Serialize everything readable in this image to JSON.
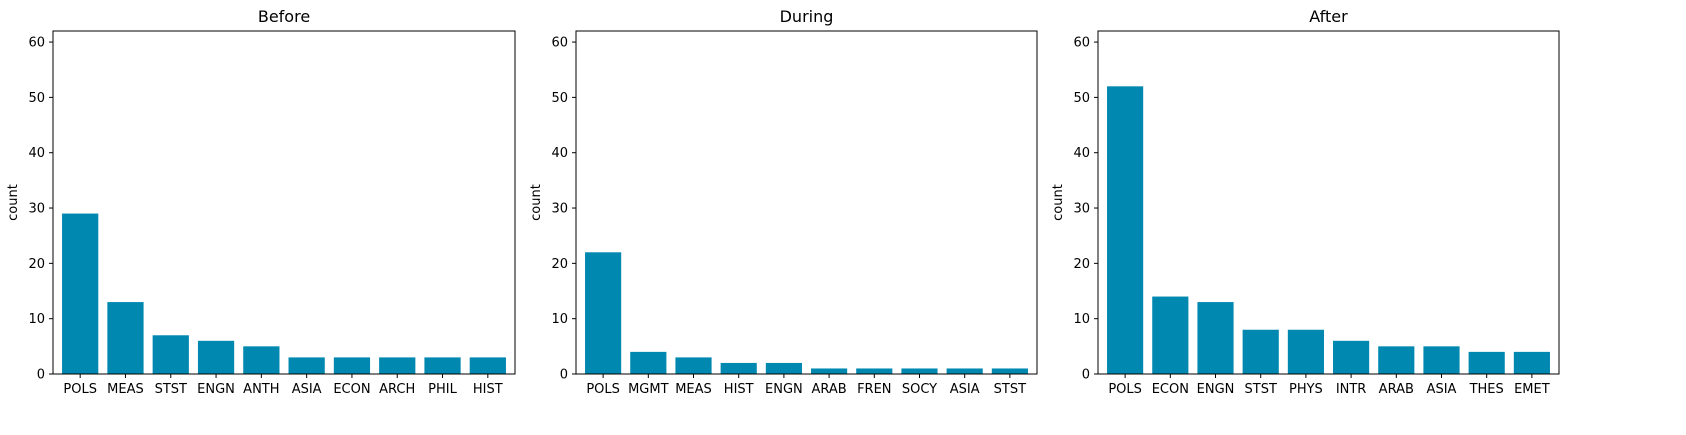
{
  "chart_data": [
    {
      "type": "bar",
      "title": "Before",
      "xlabel": "",
      "ylabel": "count",
      "ylim": [
        0,
        62
      ],
      "yticks": [
        0,
        10,
        20,
        30,
        40,
        50,
        60
      ],
      "categories": [
        "POLS",
        "MEAS",
        "STST",
        "ENGN",
        "ANTH",
        "ASIA",
        "ECON",
        "ARCH",
        "PHIL",
        "HIST"
      ],
      "values": [
        29,
        13,
        7,
        6,
        5,
        3,
        3,
        3,
        3,
        3
      ],
      "color": "#0088b0"
    },
    {
      "type": "bar",
      "title": "During",
      "xlabel": "",
      "ylabel": "count",
      "ylim": [
        0,
        62
      ],
      "yticks": [
        0,
        10,
        20,
        30,
        40,
        50,
        60
      ],
      "categories": [
        "POLS",
        "MGMT",
        "MEAS",
        "HIST",
        "ENGN",
        "ARAB",
        "FREN",
        "SOCY",
        "ASIA",
        "STST"
      ],
      "values": [
        22,
        4,
        3,
        2,
        2,
        1,
        1,
        1,
        1,
        1
      ],
      "color": "#0088b0"
    },
    {
      "type": "bar",
      "title": "After",
      "xlabel": "",
      "ylabel": "count",
      "ylim": [
        0,
        62
      ],
      "yticks": [
        0,
        10,
        20,
        30,
        40,
        50,
        60
      ],
      "categories": [
        "POLS",
        "ECON",
        "ENGN",
        "STST",
        "PHYS",
        "INTR",
        "ARAB",
        "ASIA",
        "THES",
        "EMET"
      ],
      "values": [
        52,
        14,
        13,
        8,
        8,
        6,
        5,
        5,
        4,
        4
      ],
      "color": "#0088b0"
    }
  ]
}
